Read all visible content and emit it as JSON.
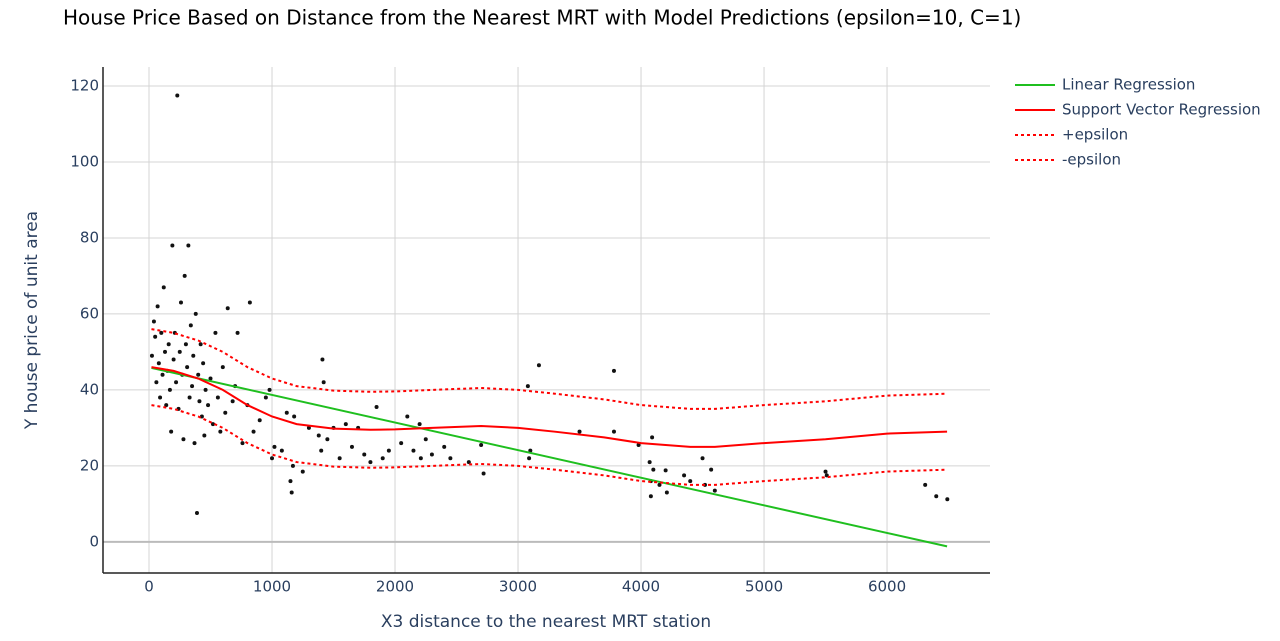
{
  "chart_data": {
    "type": "scatter",
    "title": "House Price Based on Distance from the Nearest MRT with Model Predictions (epsilon=10, C=1)",
    "x_label": "X3 distance to the nearest MRT station",
    "y_label": "Y house price of unit area",
    "xlim": [
      -374,
      6837
    ],
    "ylim": [
      -8.2,
      125
    ],
    "xticks": [
      0,
      1000,
      2000,
      3000,
      4000,
      5000,
      6000
    ],
    "yticks": [
      0,
      20,
      40,
      60,
      80,
      100,
      120
    ],
    "grid": true,
    "legend": "outside-right",
    "series": [
      {
        "mode": "markers",
        "color": "#111111",
        "x": [
          24,
          40,
          50,
          60,
          70,
          80,
          90,
          100,
          110,
          120,
          130,
          140,
          150,
          160,
          170,
          180,
          190,
          200,
          210,
          220,
          230,
          240,
          250,
          260,
          270,
          280,
          290,
          300,
          310,
          320,
          330,
          340,
          350,
          360,
          370,
          380,
          390,
          400,
          410,
          420,
          430,
          440,
          450,
          460,
          480,
          500,
          520,
          540,
          560,
          580,
          600,
          620,
          640,
          680,
          700,
          720,
          760,
          800,
          820,
          850,
          900,
          950,
          980,
          1000,
          1020,
          1080,
          1120,
          1150,
          1160,
          1170,
          1180,
          1250,
          1300,
          1380,
          1400,
          1410,
          1420,
          1450,
          1500,
          1550,
          1600,
          1650,
          1700,
          1750,
          1800,
          1850,
          1900,
          1950,
          2050,
          2100,
          2150,
          2200,
          2210,
          2250,
          2300,
          2400,
          2450,
          2600,
          2700,
          2720,
          3080,
          3090,
          3100,
          3170,
          3500,
          3780,
          3780,
          3980,
          4070,
          4080,
          4080,
          4090,
          4100,
          4150,
          4200,
          4210,
          4350,
          4400,
          4500,
          4520,
          4570,
          4600,
          5500,
          5510,
          6310,
          6400,
          6490
        ],
        "values": [
          49,
          58,
          54,
          42,
          62,
          47,
          38,
          55,
          44,
          67,
          50,
          36,
          45,
          52,
          40,
          29,
          78,
          48,
          55,
          42,
          117.5,
          35,
          50,
          63,
          44,
          27,
          70,
          52,
          46,
          78,
          38,
          57,
          41,
          49,
          26,
          60,
          7.6,
          44,
          37,
          52,
          33,
          47,
          28,
          40,
          36,
          43,
          31,
          55,
          38,
          29,
          46,
          34,
          61.5,
          37,
          41,
          55,
          26,
          36,
          63,
          29,
          32,
          38,
          40,
          22,
          25,
          24,
          34,
          16,
          13,
          20,
          33,
          18.5,
          30,
          28,
          24,
          48,
          42,
          27,
          30,
          22,
          31,
          25,
          30,
          23,
          21,
          35.5,
          22,
          24,
          26,
          33,
          24,
          31,
          22,
          27,
          23,
          25,
          22,
          21,
          25.5,
          18,
          41,
          22,
          24,
          46.5,
          29,
          45,
          29,
          25.5,
          21,
          16,
          12,
          27.5,
          19,
          15,
          18.8,
          13,
          17.5,
          16,
          22,
          15,
          19,
          13.5,
          18.5,
          17.5,
          15,
          12,
          11.2
        ]
      },
      {
        "name": "Linear Regression",
        "mode": "lines",
        "color": "#1fbf1f",
        "x": [
          20,
          6488
        ],
        "values": [
          45.8,
          -1.2
        ]
      },
      {
        "name": "Support Vector Regression",
        "mode": "lines",
        "color": "#ff0000",
        "x": [
          20,
          200,
          400,
          600,
          800,
          1000,
          1200,
          1500,
          1800,
          2000,
          2300,
          2700,
          3000,
          3300,
          3700,
          4000,
          4400,
          4600,
          5000,
          5500,
          6000,
          6488
        ],
        "values": [
          46,
          45,
          43,
          40,
          36,
          33,
          31,
          29.8,
          29.5,
          29.6,
          30,
          30.5,
          30,
          29,
          27.5,
          26,
          25,
          25,
          26,
          27,
          28.5,
          29
        ]
      },
      {
        "name": "+epsilon",
        "mode": "lines",
        "dash": "dot",
        "color": "#ff0000",
        "x": [
          20,
          200,
          400,
          600,
          800,
          1000,
          1200,
          1500,
          1800,
          2000,
          2300,
          2700,
          3000,
          3300,
          3700,
          4000,
          4400,
          4600,
          5000,
          5500,
          6000,
          6488
        ],
        "values": [
          56,
          55,
          53,
          50,
          46,
          43,
          41,
          39.8,
          39.5,
          39.6,
          40,
          40.5,
          40,
          39,
          37.5,
          36,
          35,
          35,
          36,
          37,
          38.5,
          39
        ]
      },
      {
        "name": "-epsilon",
        "mode": "lines",
        "dash": "dot",
        "color": "#ff0000",
        "x": [
          20,
          200,
          400,
          600,
          800,
          1000,
          1200,
          1500,
          1800,
          2000,
          2300,
          2700,
          3000,
          3300,
          3700,
          4000,
          4400,
          4600,
          5000,
          5500,
          6000,
          6488
        ],
        "values": [
          36,
          35,
          33,
          30,
          26,
          23,
          21,
          19.8,
          19.5,
          19.6,
          20,
          20.5,
          20,
          19,
          17.5,
          16,
          15,
          15,
          16,
          17,
          18.5,
          19
        ]
      }
    ]
  }
}
